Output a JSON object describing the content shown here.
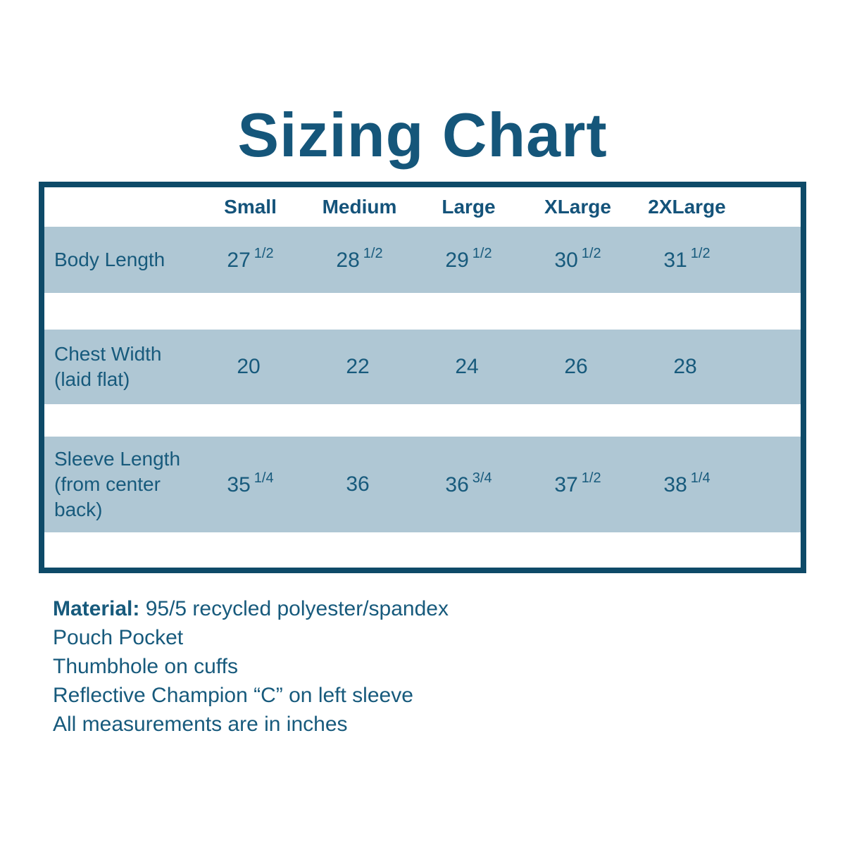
{
  "title": "Sizing Chart",
  "colors": {
    "text": "#175a7c",
    "title": "#15567a",
    "table_border": "#0e4a68",
    "row_band": "#afc7d4",
    "background": "#ffffff"
  },
  "table": {
    "columns": [
      "Small",
      "Medium",
      "Large",
      "XLarge",
      "2XLarge"
    ],
    "rows": [
      {
        "label": "Body Length",
        "values": [
          {
            "base": "27",
            "frac": "1/2"
          },
          {
            "base": "28",
            "frac": "1/2"
          },
          {
            "base": "29",
            "frac": "1/2"
          },
          {
            "base": "30",
            "frac": "1/2"
          },
          {
            "base": "31",
            "frac": "1/2"
          }
        ]
      },
      {
        "label": "Chest Width (laid flat)",
        "values": [
          {
            "base": "20",
            "frac": ""
          },
          {
            "base": "22",
            "frac": ""
          },
          {
            "base": "24",
            "frac": ""
          },
          {
            "base": "26",
            "frac": ""
          },
          {
            "base": "28",
            "frac": ""
          }
        ]
      },
      {
        "label": "Sleeve Length (from center back)",
        "values": [
          {
            "base": "35",
            "frac": "1/4"
          },
          {
            "base": "36",
            "frac": ""
          },
          {
            "base": "36",
            "frac": "3/4"
          },
          {
            "base": "37",
            "frac": "1/2"
          },
          {
            "base": "38",
            "frac": "1/4"
          }
        ]
      }
    ]
  },
  "notes": {
    "material_label": "Material:",
    "material_value": " 95/5 recycled polyester/spandex",
    "line_2": "Pouch Pocket",
    "line_3": "Thumbhole on cuffs",
    "line_4": "Reflective Champion “C” on left sleeve",
    "line_5": "All measurements are in inches"
  },
  "chart_data": {
    "type": "table",
    "title": "Sizing Chart",
    "columns": [
      "Small",
      "Medium",
      "Large",
      "XLarge",
      "2XLarge"
    ],
    "rows": [
      {
        "label": "Body Length",
        "values": [
          "27 1/2",
          "28 1/2",
          "29 1/2",
          "30 1/2",
          "31 1/2"
        ]
      },
      {
        "label": "Chest Width (laid flat)",
        "values": [
          "20",
          "22",
          "24",
          "26",
          "28"
        ]
      },
      {
        "label": "Sleeve Length (from center back)",
        "values": [
          "35 1/4",
          "36",
          "36 3/4",
          "37 1/2",
          "38 1/4"
        ]
      }
    ],
    "units": "inches",
    "footnotes": [
      "Material: 95/5 recycled polyester/spandex",
      "Pouch Pocket",
      "Thumbhole on cuffs",
      "Reflective Champion “C” on left sleeve",
      "All measurements are in inches"
    ]
  }
}
